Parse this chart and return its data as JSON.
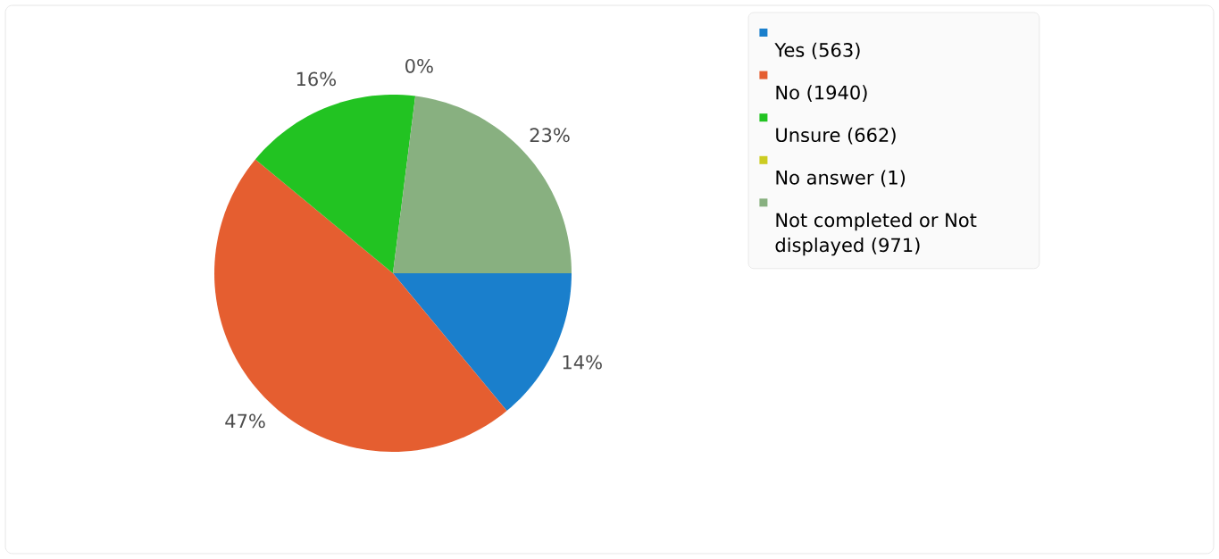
{
  "chart_data": {
    "type": "pie",
    "categories": [
      "Yes (563)",
      "No (1940)",
      "Unsure (662)",
      "No answer (1)",
      "Not completed or Not displayed (971)"
    ],
    "values": [
      14,
      47,
      16,
      0,
      23
    ],
    "colors": [
      "#1a7fcc",
      "#e55e30",
      "#22c322",
      "#cccc22",
      "#88b080"
    ],
    "value_labels": [
      "14%",
      "47%",
      "16%",
      "0%",
      "23%"
    ],
    "legend": "top right"
  }
}
